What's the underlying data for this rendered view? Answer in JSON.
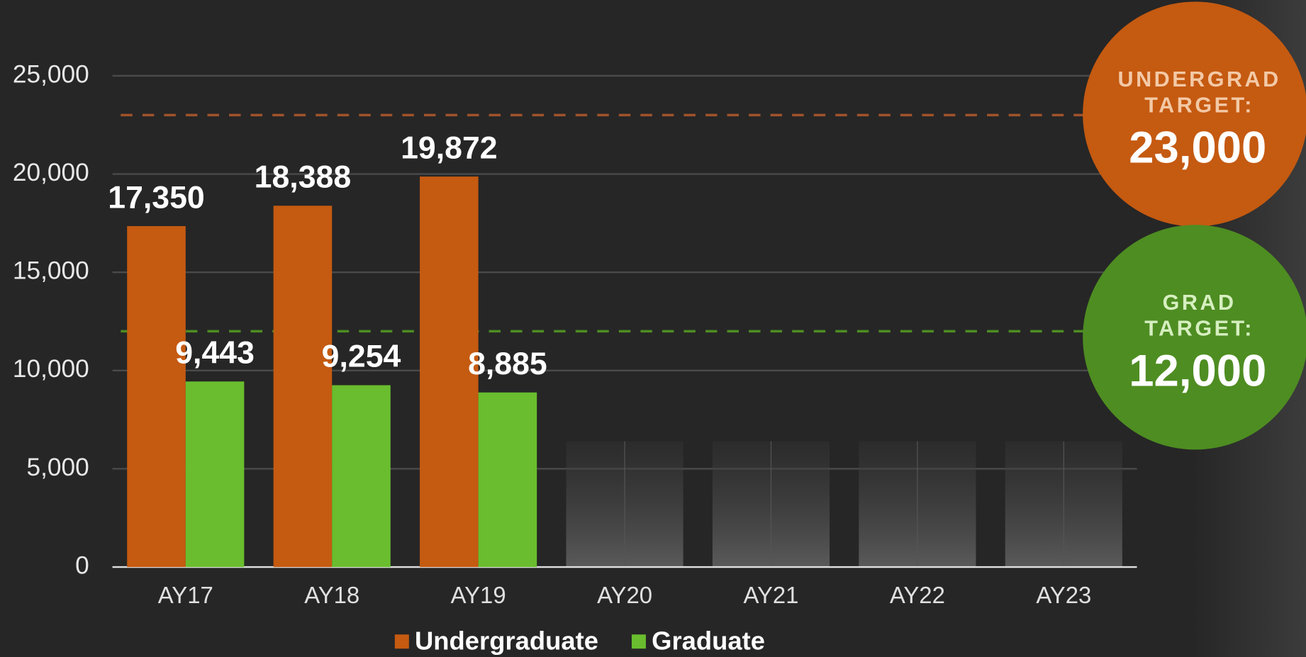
{
  "chart_data": {
    "type": "bar",
    "categories": [
      "AY17",
      "AY18",
      "AY19",
      "AY20",
      "AY21",
      "AY22",
      "AY23"
    ],
    "series": [
      {
        "name": "Undergraduate",
        "color": "#c55a11",
        "values": [
          17350,
          18388,
          19872,
          null,
          null,
          null,
          null
        ],
        "value_labels": [
          "17,350",
          "18,388",
          "19,872",
          null,
          null,
          null,
          null
        ]
      },
      {
        "name": "Graduate",
        "color": "#69bd2e",
        "values": [
          9443,
          9254,
          8885,
          null,
          null,
          null,
          null
        ],
        "value_labels": [
          "9,443",
          "9,254",
          "8,885",
          null,
          null,
          null,
          null
        ]
      }
    ],
    "ylim": [
      0,
      25000
    ],
    "yticks": [
      0,
      {
        "value": 5000,
        "label": "5,000"
      },
      {
        "value": 10000,
        "label": "10,000"
      },
      {
        "value": 15000,
        "label": "15,000"
      },
      {
        "value": 20000,
        "label": "20,000"
      },
      {
        "value": 25000,
        "label": "25,000"
      }
    ],
    "grid": true,
    "legend": "bottom",
    "targets": [
      {
        "label_lines": [
          "UNDERGRAD",
          "TARGET:"
        ],
        "value": 23000,
        "value_label": "23,000",
        "color": "#c55a11",
        "line_color": "#a0532a"
      },
      {
        "label_lines": [
          "GRAD",
          "TARGET:"
        ],
        "value": 12000,
        "value_label": "12,000",
        "color": "#4e8d22",
        "line_color": "#4e8d22"
      }
    ]
  }
}
